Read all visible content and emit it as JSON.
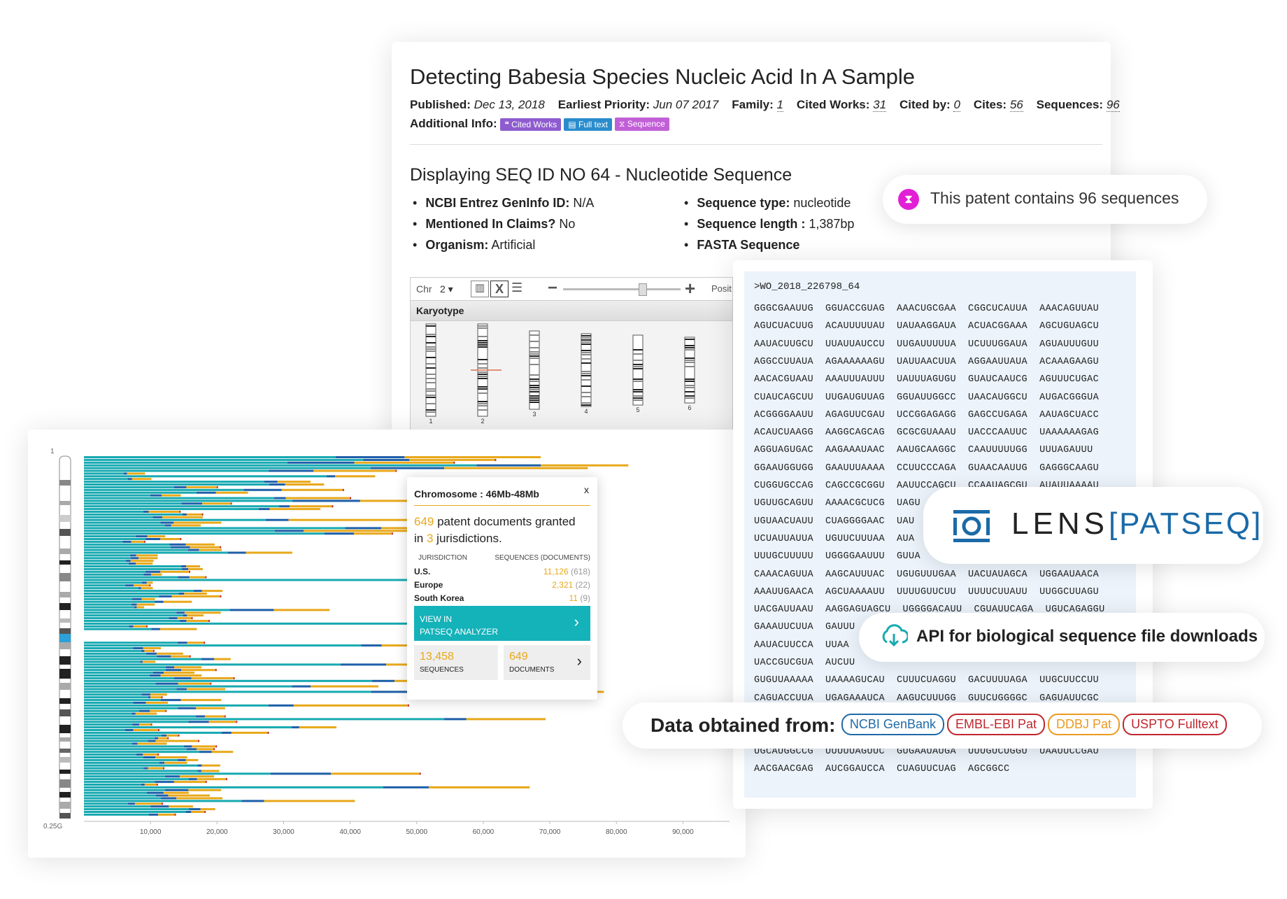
{
  "patent": {
    "title": "Detecting Babesia Species Nucleic Acid In A Sample",
    "published_label": "Published:",
    "published": "Dec 13, 2018",
    "priority_label": "Earliest Priority:",
    "priority": "Jun 07 2017",
    "family_label": "Family:",
    "family": "1",
    "cited_works_label": "Cited Works:",
    "cited_works": "31",
    "cited_by_label": "Cited by:",
    "cited_by": "0",
    "cites_label": "Cites:",
    "cites": "56",
    "sequences_label": "Sequences:",
    "sequences": "96",
    "additional_label": "Additional Info:",
    "tags": [
      {
        "label": "Cited Works",
        "color": "#8e5ccf"
      },
      {
        "label": "Full text",
        "color": "#2a8ccc"
      },
      {
        "label": "Sequence",
        "color": "#c15fd6"
      }
    ],
    "seq_heading": "Displaying SEQ ID NO 64 - Nucleotide Sequence",
    "left_bullets": [
      {
        "label": "NCBI Entrez GenInfo ID:",
        "value": "N/A"
      },
      {
        "label": "Mentioned In Claims?",
        "value": "No"
      },
      {
        "label": "Organism:",
        "value": "Artificial"
      }
    ],
    "right_bullets": [
      {
        "label": "Sequence type:",
        "value": "nucleotide"
      },
      {
        "label": "Sequence length :",
        "value": "1,387bp"
      },
      {
        "label": "FASTA Sequence",
        "value": ""
      }
    ]
  },
  "karyotype": {
    "chr_label": "Chr",
    "chr_value": "2 ▾",
    "position_label": "Posit",
    "panel_label": "Karyotype",
    "chromosomes": [
      "1",
      "2",
      "3",
      "4",
      "5",
      "6"
    ]
  },
  "chart": {
    "y_top_label": "1",
    "y_bottom_label": "0.25G",
    "x_ticks": [
      "10,000",
      "20,000",
      "30,000",
      "40,000",
      "50,000",
      "60,000",
      "70,000",
      "80,000",
      "90,000"
    ],
    "colors": {
      "teal": "#17a9b1",
      "blue": "#1d5fa8",
      "yellow": "#e8a81a",
      "red": "#cc2b2b"
    }
  },
  "tooltip": {
    "title": "Chromosome : 46Mb-48Mb",
    "close": "x",
    "count": "649",
    "text1": " patent documents granted",
    "text2": "in ",
    "jur_count": "3",
    "text3": " jurisdictions.",
    "col1": "JURISDICTION",
    "col2": "SEQUENCES (DOCUMENTS)",
    "rows": [
      {
        "name": "U.S.",
        "seq": "11,126",
        "docs": "(618)"
      },
      {
        "name": "Europe",
        "seq": "2,321",
        "docs": "(22)"
      },
      {
        "name": "South Korea",
        "seq": "11",
        "docs": "(9)"
      }
    ],
    "view_line1": "VIEW IN",
    "view_line2": "PATSEQ ANALYZER",
    "seq_count": "13,458",
    "seq_label": "SEQUENCES",
    "doc_count": "649",
    "doc_label": "DOCUMENTS"
  },
  "fasta": {
    "header": ">WO_2018_226798_64",
    "lines": [
      "GGGCGAAUUG  GGUACCGUAG  AAACUGCGAA  CGGCUCAUUA  AAACAGUUAU",
      "AGUCUACUUG  ACAUUUUUAU  UAUAAGGAUA  ACUACGGAAA  AGCUGUAGCU",
      "AAUACUUGCU  UUAUUAUCCU  UUGAUUUUUA  UCUUUGGAUA  AGUAUUUGUU",
      "AGGCCUUAUA  AGAAAAAAGU  UAUUAACUUA  AGGAAUUAUA  ACAAAGAAGU",
      "AACACGUAAU  AAAUUUAUUU  UAUUUAGUGU  GUAUCAAUCG  AGUUUCUGAC",
      "CUAUCAGCUU  UUGAUGUUAG  GGUAUUGGCC  UAACAUGGCU  AUGACGGGUA",
      "ACGGGGAAUU  AGAGUUCGAU  UCCGGAGAGG  GAGCCUGAGA  AAUAGCUACC",
      "ACAUCUAAGG  AAGGCAGCAG  GCGCGUAAAU  UACCCAAUUC  UAAAAAAGAG",
      "AGGUAGUGAC  AAGAAAUAAC  AAUGCAAGGC  CAAUUUUUGG  UUUAGAUUU",
      "GGAAUGGUGG  GAAUUUAAAA  CCUUCCCAGA  GUAACAAUUG  GAGGGCAAGU",
      "CUGGUGCCAG  CAGCCGCGGU  AAUUCCAGCU  CCAAUAGCGU  AUAUUAAAAU",
      "UGUUGCAGUU  AAAACGCUCG  UAGU",
      "UGUAACUAUU  CUAGGGGAAC  UAU",
      "UCUAUUAUUA  UGUUCUUUAA  AUA",
      "UUUGCUUUUU  UGGGGAAUUU  GUUA",
      "CAAACAGUUA  AAGCAUUUAC  UGUGUUUGAA  UACUAUAGCA  UGGAAUAACA",
      "AAAUUGAACA  AGCUAAAAUU  UUUUGUUCUU  UUUUCUUAUU  UUGGCUUAGU",
      "UACGAUUAAU  AAGGAGUAGCU  UGGGGACAUU  CGUAUUCAGA  UGUCAGAGGU",
      "GAAAUUCUUA  GAUUU",
      "AAUACUUCCA  UUAA",
      "UACCGUCGUA  AUCUU",
      "GUGUUAAAAA  UAAAAGUCAU  CUUUCUAGGU  GACUUUUAGA  UUGCUUCCUU",
      "CAGUACCUUA  UGAGAAAUCA  AAGUCUUUGG  GUUCUGGGGC  GAGUAUUCGC",
      "",
      "",
      "UGCAUGGCCG  UUUUUAGUUC  GUGAAUAUGA  UUUGUCUGGU  UAAUUCCGAU",
      "AACGAACGAG  AUCGGAUCCA  CUAGUUCUAG  AGCGGCC"
    ]
  },
  "pills": {
    "sequences_text": "This patent contains 96 sequences",
    "lens_word": "LENS",
    "patseq_word": "[PATSEQ]",
    "api_text": "API for biological sequence file downloads",
    "data_label": "Data obtained from:",
    "sources": [
      {
        "label": "NCBI GenBank",
        "color": "#1e6aa8"
      },
      {
        "label": "EMBL-EBI Pat",
        "color": "#c0262e"
      },
      {
        "label": "DDBJ Pat",
        "color": "#eb9a22"
      },
      {
        "label": "USPTO Fulltext",
        "color": "#c0262e"
      }
    ]
  }
}
